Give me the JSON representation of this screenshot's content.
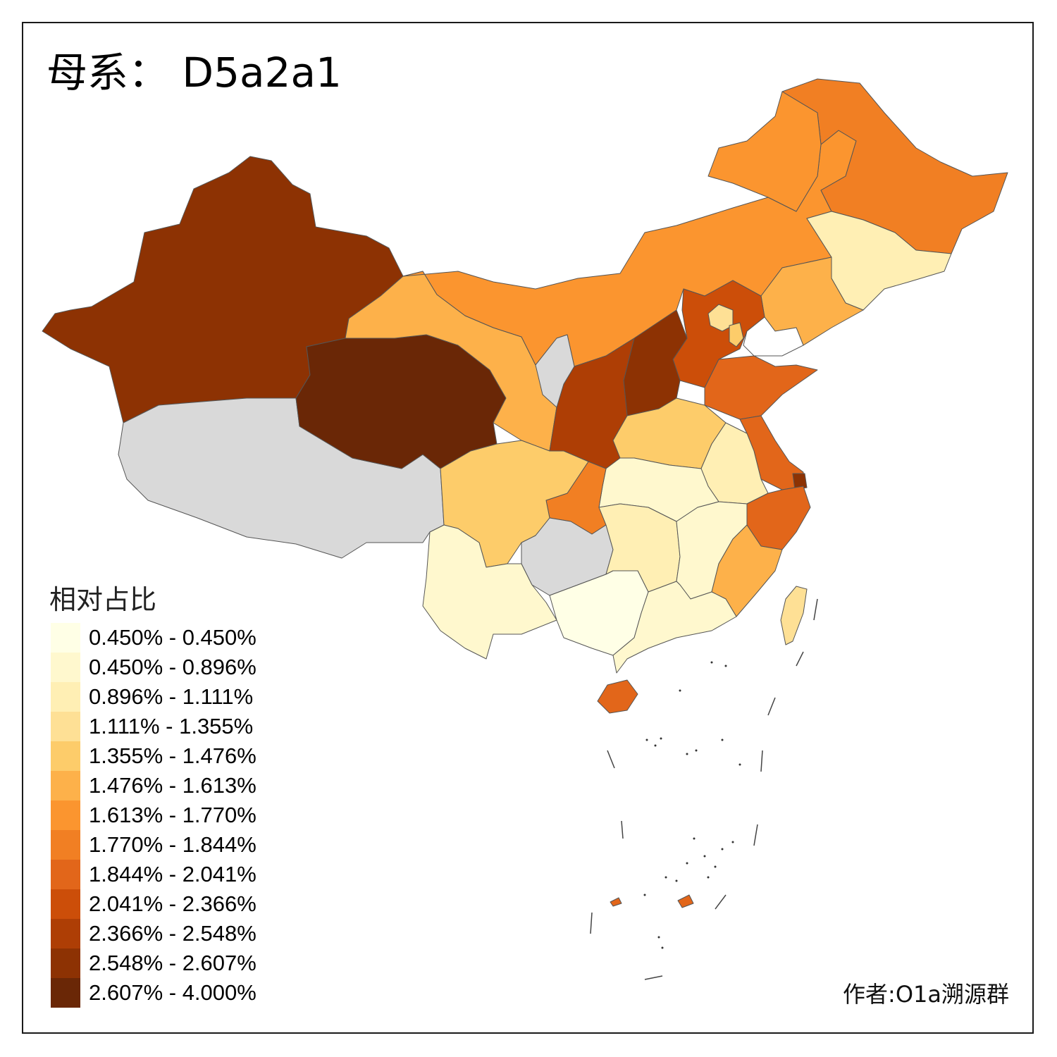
{
  "title": "母系： D5a2a1",
  "legend": {
    "title": "相对占比",
    "items": [
      {
        "label": "0.450% - 0.450%",
        "color": "#FFFFE6"
      },
      {
        "label": "0.450% - 0.896%",
        "color": "#FFF8CE"
      },
      {
        "label": "0.896% - 1.111%",
        "color": "#FFEFB4"
      },
      {
        "label": "1.111% - 1.355%",
        "color": "#FEE095"
      },
      {
        "label": "1.355% - 1.476%",
        "color": "#FDCC6A"
      },
      {
        "label": "1.476% - 1.613%",
        "color": "#FDB14A"
      },
      {
        "label": "1.613% - 1.770%",
        "color": "#FB952F"
      },
      {
        "label": "1.770% - 1.844%",
        "color": "#F17F23"
      },
      {
        "label": "1.844% - 2.041%",
        "color": "#E2661A"
      },
      {
        "label": "2.041% - 2.366%",
        "color": "#CC4E09"
      },
      {
        "label": "2.366% - 2.548%",
        "color": "#AE3E05"
      },
      {
        "label": "2.548% - 2.607%",
        "color": "#8D3203"
      },
      {
        "label": "2.607% - 4.000%",
        "color": "#6A2706"
      }
    ]
  },
  "no_data_color": "#D9D9D9",
  "credit": "作者:O1a溯源群"
}
